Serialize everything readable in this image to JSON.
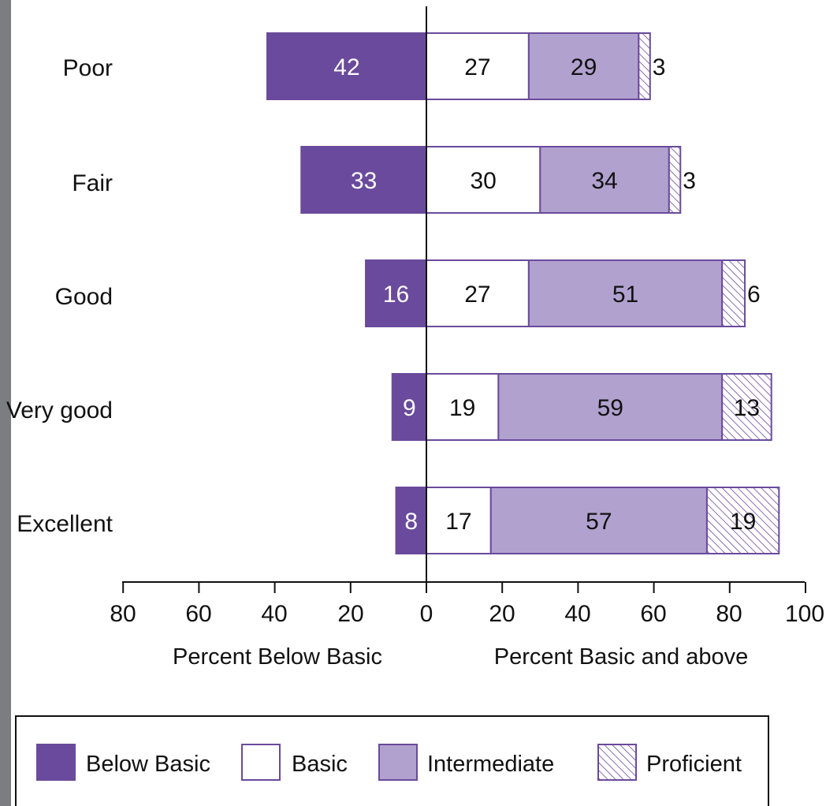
{
  "colors": {
    "slide_bg": "#7b7d80",
    "panel_bg": "#ffffff",
    "below_basic": "#6a4a9c",
    "basic": "#ffffff",
    "intermediate": "#b1a1cf",
    "proficient_line": "#6a4a9c",
    "outline": "#6a4a9c",
    "axis": "#111111"
  },
  "chart_data": {
    "type": "bar",
    "orientation": "horizontal",
    "stacked": true,
    "diverging": true,
    "categories": [
      "Poor",
      "Fair",
      "Good",
      "Very good",
      "Excellent"
    ],
    "series": [
      {
        "name": "Below Basic",
        "side": "left",
        "values": [
          42,
          33,
          16,
          9,
          8
        ],
        "color": "#6a4a9c"
      },
      {
        "name": "Basic",
        "side": "right",
        "values": [
          27,
          30,
          27,
          19,
          17
        ],
        "color": "#ffffff"
      },
      {
        "name": "Intermediate",
        "side": "right",
        "values": [
          29,
          34,
          51,
          59,
          57
        ],
        "color": "#b1a1cf"
      },
      {
        "name": "Proficient",
        "side": "right",
        "values": [
          3,
          3,
          6,
          13,
          19
        ],
        "pattern": "hatched"
      }
    ],
    "x_ticks_left": [
      "80",
      "60",
      "40",
      "20"
    ],
    "x_ticks_right": [
      "0",
      "20",
      "40",
      "60",
      "80",
      "100"
    ],
    "xlim": [
      -80,
      100
    ],
    "xlabel_left": "Percent Below Basic",
    "xlabel_right": "Percent Basic and above",
    "legend": {
      "position": "bottom",
      "items": [
        "Below Basic",
        "Basic",
        "Intermediate",
        "Proficient"
      ]
    }
  }
}
